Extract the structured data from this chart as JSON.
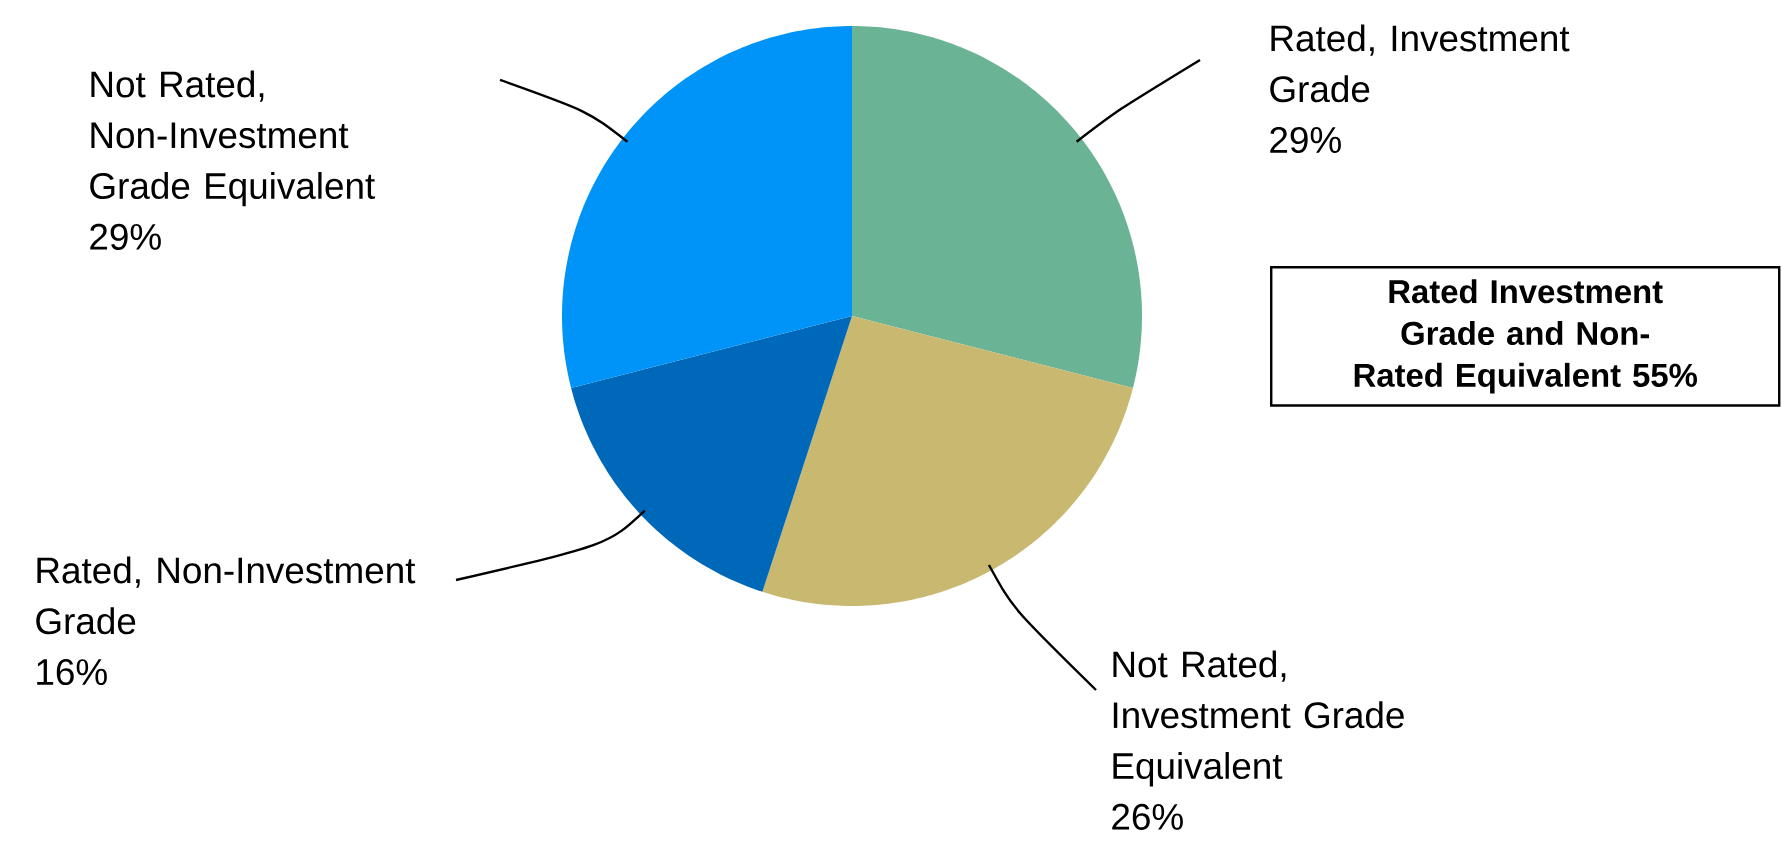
{
  "chart_data": {
    "type": "pie",
    "categories": [
      "Rated, Investment Grade",
      "Not Rated, Investment Grade Equivalent",
      "Rated, Non-Investment Grade",
      "Not Rated, Non-Investment Grade Equivalent"
    ],
    "values": [
      29,
      26,
      16,
      29
    ],
    "value_labels": [
      "29%",
      "26%",
      "16%",
      "29%"
    ],
    "colors": [
      "#6ab495",
      "#c8b870",
      "#0068b8",
      "#0094f8"
    ],
    "annotations": [
      "**Rated Investment Grade and Non-Rated  Equivalent 55%**"
    ]
  }
}
